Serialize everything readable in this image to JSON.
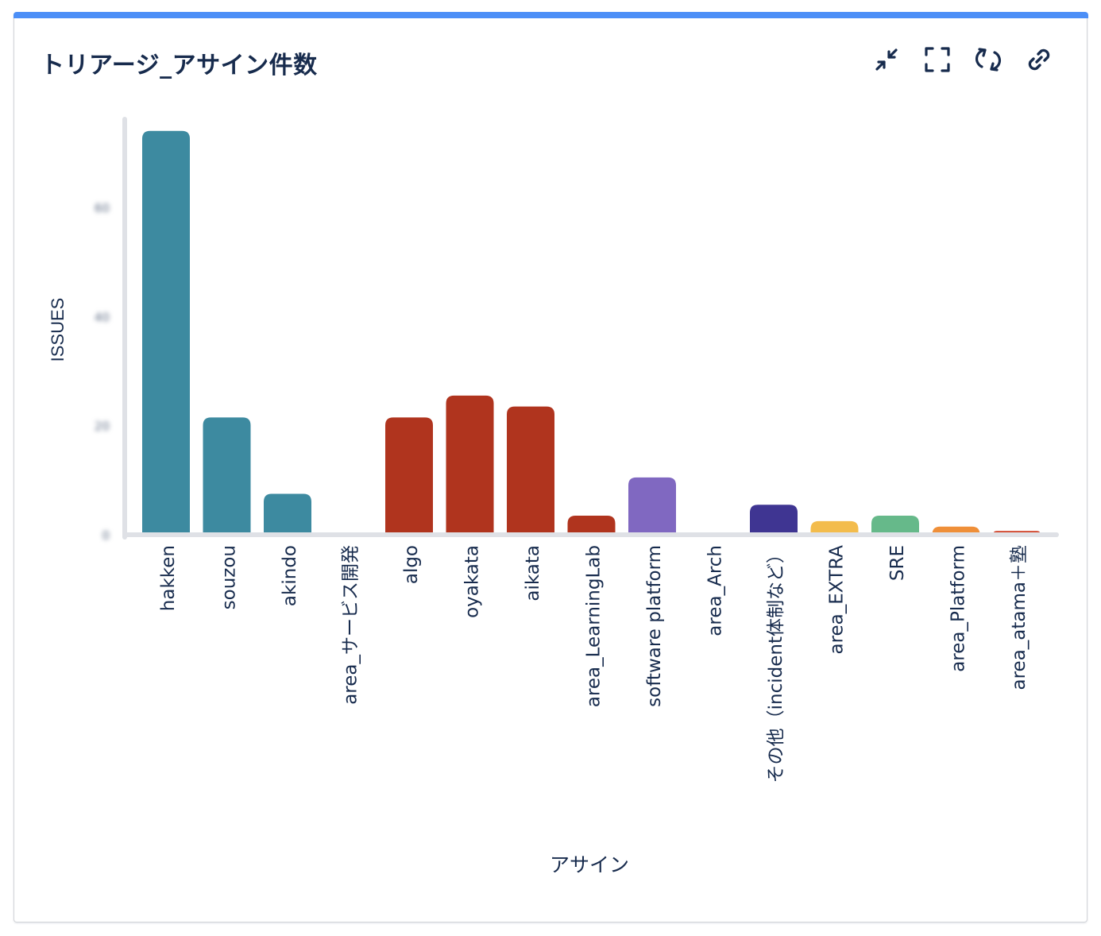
{
  "header": {
    "title": "トリアージ_アサイン件数"
  },
  "toolbar": {
    "items": [
      {
        "name": "minimize-icon"
      },
      {
        "name": "fullscreen-icon"
      },
      {
        "name": "refresh-icon"
      },
      {
        "name": "link-icon"
      }
    ]
  },
  "chart_data": {
    "type": "bar",
    "xlabel": "アサイン",
    "ylabel": "ISSUES",
    "ylim": [
      0,
      75
    ],
    "yticks": [
      "0",
      "20",
      "40",
      "60"
    ],
    "yticks_blurred": true,
    "grid": false,
    "categories": [
      "hakken",
      "souzou",
      "akindo",
      "area_サービス開発",
      "algo",
      "oyakata",
      "aikata",
      "area_LearningLab",
      "software platform",
      "area_Arch",
      "その他（incident体制など）",
      "area_EXTRA",
      "SRE",
      "area_Platform",
      "area_atama＋塾"
    ],
    "values": [
      74,
      21.5,
      7.5,
      0,
      21.5,
      25.5,
      23.5,
      3.5,
      10.5,
      0,
      5.5,
      2.5,
      3.5,
      1.5,
      0.7
    ],
    "colors": [
      "#3d8aa0",
      "#3d8aa0",
      "#3d8aa0",
      "#3d8aa0",
      "#b0341e",
      "#b0341e",
      "#b0341e",
      "#b0341e",
      "#8068c1",
      "#8068c1",
      "#3f3592",
      "#f3bc4c",
      "#66b98a",
      "#ef8f39",
      "#cf3c22"
    ]
  }
}
